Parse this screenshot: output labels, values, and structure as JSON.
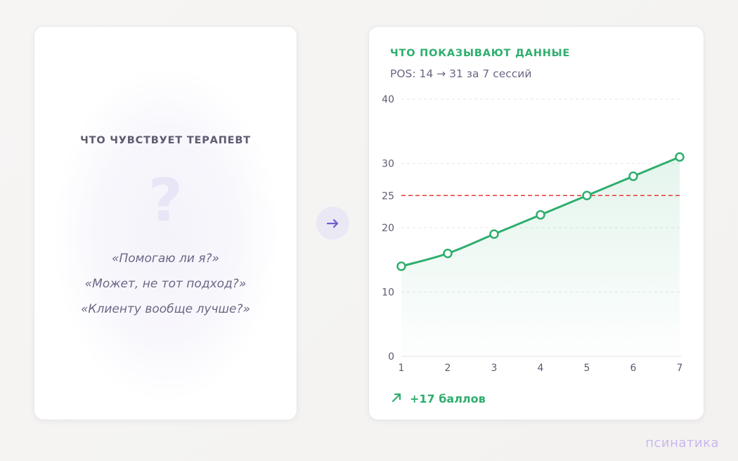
{
  "left_card": {
    "title": "ЧТО ЧУВСТВУЕТ ТЕРАПЕВТ",
    "symbol": "?",
    "quotes": [
      "«Помогаю ли я?»",
      "«Может, не тот подход?»",
      "«Клиенту вообще лучше?»"
    ]
  },
  "arrow": {
    "icon": "arrow-right-icon"
  },
  "right_card": {
    "title": "ЧТО ПОКАЗЫВАЮТ ДАННЫЕ",
    "subtitle": "POS: 14 → 31 за 7 сессий",
    "footer_icon": "trend-up-arrow-icon",
    "footer_label": "+17 баллов"
  },
  "brand": "псинатика",
  "colors": {
    "accent_green": "#2fae6e",
    "threshold_red": "#e53935",
    "muted_purple": "#6a6785",
    "arrow_purple": "#6c5fd3"
  },
  "chart_data": {
    "type": "line",
    "x": [
      1,
      2,
      3,
      4,
      5,
      6,
      7
    ],
    "xlim": [
      1,
      7
    ],
    "ylim": [
      0,
      40
    ],
    "y_ticks": [
      0,
      10,
      20,
      25,
      30,
      40
    ],
    "series": [
      {
        "values": [
          14,
          16,
          19,
          22,
          25,
          28,
          31
        ]
      }
    ],
    "threshold": 25,
    "grid": true
  }
}
